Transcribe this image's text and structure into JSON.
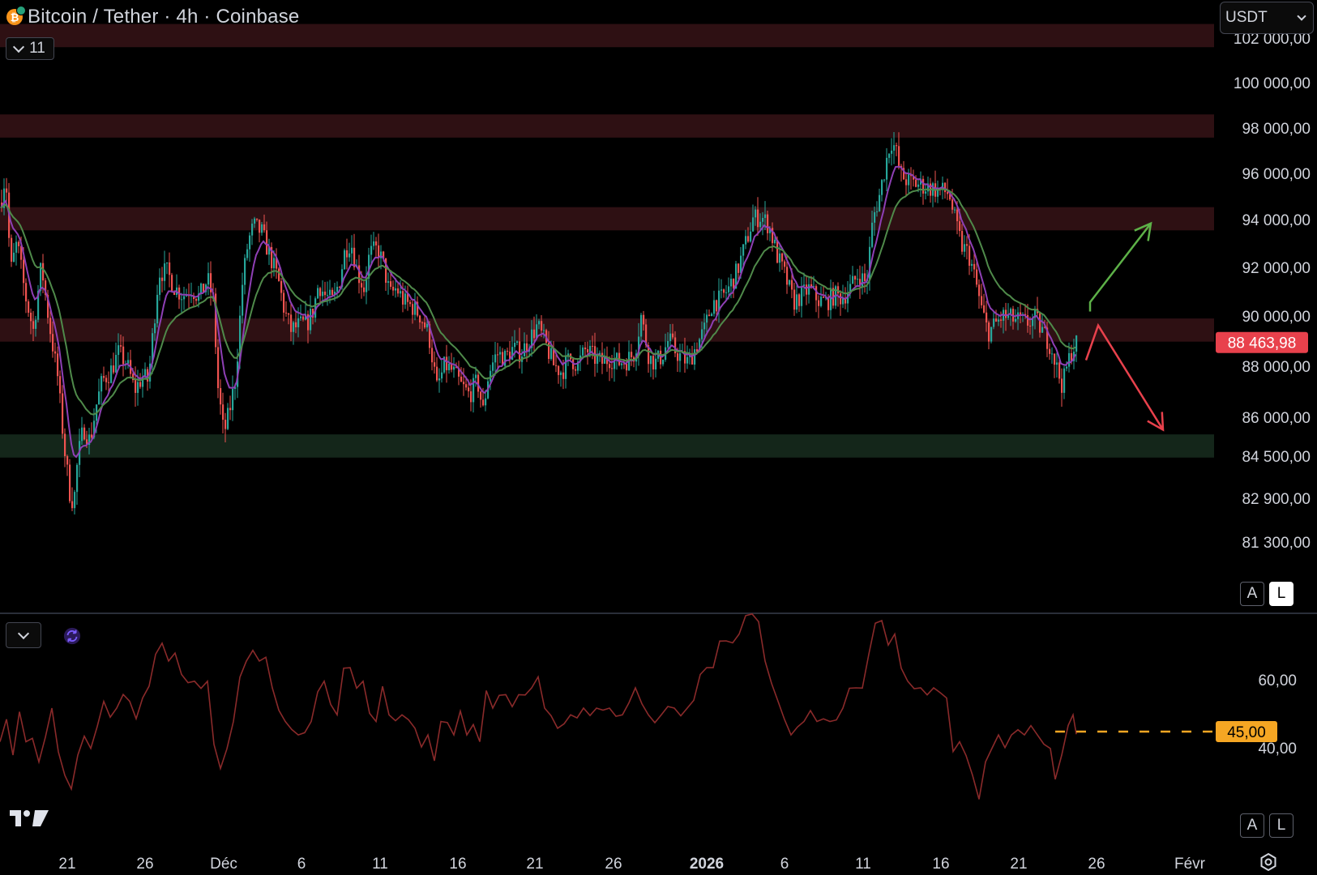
{
  "header": {
    "title": "Bitcoin / Tether · 4h · Coinbase",
    "indicator_count": "11",
    "currency": "USDT"
  },
  "colors": {
    "background": "#000000",
    "resistance_zone": "#2e1013",
    "support_zone": "#14261a",
    "candle_up": "#26a69a",
    "candle_down": "#ef5350",
    "ema_fast": "#8e3fb5",
    "ema_slow": "#4f8a4a",
    "rsi_line": "#8a2a2a",
    "price_label": "#e8414c",
    "rsi_label": "#f5a623",
    "arrow_up": "#5db148",
    "arrow_down": "#e8414c"
  },
  "price_axis": {
    "ticks": [
      "102 000,00",
      "100 000,00",
      "98 000,00",
      "96 000,00",
      "94 000,00",
      "92 000,00",
      "90 000,00",
      "88 000,00",
      "86 000,00",
      "84 500,00",
      "82 900,00",
      "81 300,00"
    ],
    "current_price": "88 463,98"
  },
  "rsi_axis": {
    "ticks": [
      "60,00",
      "40,00"
    ],
    "current_value": "45,00"
  },
  "time_axis": {
    "labels": [
      "21",
      "26",
      "Déc",
      "6",
      "11",
      "16",
      "21",
      "26",
      "2026",
      "6",
      "11",
      "16",
      "21",
      "26",
      "Févr"
    ]
  },
  "scale_buttons": {
    "auto": "A",
    "log": "L"
  },
  "zones": [
    {
      "type": "resistance",
      "low": 101200,
      "high": 102200
    },
    {
      "type": "resistance",
      "low": 97300,
      "high": 98300
    },
    {
      "type": "resistance",
      "low": 93300,
      "high": 94300
    },
    {
      "type": "resistance",
      "low": 88500,
      "high": 89500
    },
    {
      "type": "support",
      "low": 83500,
      "high": 84500
    }
  ],
  "chart_data": {
    "type": "candlestick",
    "symbol": "BTC/USDT",
    "interval": "4h",
    "exchange": "Coinbase",
    "y_range": [
      80400,
      102500
    ],
    "last_price": 88463.98,
    "price_path": [
      [
        0,
        94500
      ],
      [
        6,
        95800
      ],
      [
        12,
        91500
      ],
      [
        20,
        92800
      ],
      [
        30,
        90500
      ],
      [
        40,
        89000
      ],
      [
        50,
        91800
      ],
      [
        60,
        89200
      ],
      [
        70,
        87000
      ],
      [
        78,
        84000
      ],
      [
        85,
        82000
      ],
      [
        90,
        81500
      ],
      [
        95,
        83500
      ],
      [
        102,
        84800
      ],
      [
        110,
        84200
      ],
      [
        118,
        85800
      ],
      [
        125,
        86800
      ],
      [
        135,
        87200
      ],
      [
        145,
        88000
      ],
      [
        155,
        87600
      ],
      [
        165,
        86400
      ],
      [
        175,
        87000
      ],
      [
        182,
        86800
      ],
      [
        188,
        89000
      ],
      [
        195,
        91500
      ],
      [
        205,
        91500
      ],
      [
        215,
        90800
      ],
      [
        225,
        90500
      ],
      [
        235,
        90800
      ],
      [
        245,
        90400
      ],
      [
        255,
        91200
      ],
      [
        262,
        90300
      ],
      [
        268,
        86500
      ],
      [
        275,
        84500
      ],
      [
        282,
        85500
      ],
      [
        290,
        87000
      ],
      [
        298,
        91000
      ],
      [
        305,
        92800
      ],
      [
        312,
        93500
      ],
      [
        322,
        93200
      ],
      [
        332,
        92200
      ],
      [
        342,
        91200
      ],
      [
        350,
        89800
      ],
      [
        358,
        89000
      ],
      [
        368,
        89200
      ],
      [
        378,
        89300
      ],
      [
        385,
        89800
      ],
      [
        392,
        91000
      ],
      [
        400,
        90500
      ],
      [
        410,
        90200
      ],
      [
        418,
        91200
      ],
      [
        425,
        92500
      ],
      [
        432,
        92800
      ],
      [
        440,
        91500
      ],
      [
        448,
        90800
      ],
      [
        455,
        92300
      ],
      [
        465,
        92500
      ],
      [
        472,
        91800
      ],
      [
        480,
        90500
      ],
      [
        488,
        90800
      ],
      [
        498,
        90200
      ],
      [
        508,
        90000
      ],
      [
        518,
        89600
      ],
      [
        528,
        88800
      ],
      [
        538,
        86500
      ],
      [
        548,
        87500
      ],
      [
        558,
        87200
      ],
      [
        568,
        86600
      ],
      [
        578,
        86200
      ],
      [
        588,
        86800
      ],
      [
        595,
        85500
      ],
      [
        602,
        87200
      ],
      [
        612,
        88000
      ],
      [
        622,
        87800
      ],
      [
        632,
        88200
      ],
      [
        642,
        88000
      ],
      [
        652,
        88600
      ],
      [
        662,
        89200
      ],
      [
        672,
        88400
      ],
      [
        682,
        87500
      ],
      [
        692,
        87200
      ],
      [
        702,
        87800
      ],
      [
        712,
        87500
      ],
      [
        722,
        88200
      ],
      [
        732,
        87800
      ],
      [
        742,
        87600
      ],
      [
        752,
        87800
      ],
      [
        762,
        87600
      ],
      [
        772,
        87700
      ],
      [
        782,
        88000
      ],
      [
        790,
        89600
      ],
      [
        800,
        87800
      ],
      [
        808,
        87600
      ],
      [
        816,
        87900
      ],
      [
        824,
        88600
      ],
      [
        832,
        88100
      ],
      [
        840,
        87800
      ],
      [
        848,
        87600
      ],
      [
        858,
        88300
      ],
      [
        868,
        89000
      ],
      [
        878,
        90200
      ],
      [
        888,
        90300
      ],
      [
        898,
        90800
      ],
      [
        908,
        91500
      ],
      [
        918,
        92600
      ],
      [
        928,
        93800
      ],
      [
        938,
        93900
      ],
      [
        948,
        93500
      ],
      [
        958,
        92200
      ],
      [
        968,
        91300
      ],
      [
        978,
        90200
      ],
      [
        988,
        90500
      ],
      [
        998,
        90800
      ],
      [
        1008,
        90300
      ],
      [
        1018,
        90200
      ],
      [
        1028,
        90500
      ],
      [
        1038,
        90400
      ],
      [
        1048,
        90800
      ],
      [
        1058,
        91400
      ],
      [
        1068,
        91000
      ],
      [
        1076,
        93800
      ],
      [
        1084,
        94800
      ],
      [
        1092,
        96200
      ],
      [
        1098,
        97200
      ],
      [
        1104,
        96800
      ],
      [
        1110,
        95700
      ],
      [
        1120,
        95400
      ],
      [
        1130,
        95300
      ],
      [
        1140,
        95200
      ],
      [
        1150,
        95100
      ],
      [
        1160,
        95000
      ],
      [
        1170,
        94900
      ],
      [
        1178,
        93600
      ],
      [
        1186,
        92600
      ],
      [
        1194,
        92300
      ],
      [
        1202,
        91200
      ],
      [
        1210,
        89900
      ],
      [
        1218,
        88900
      ],
      [
        1226,
        89200
      ],
      [
        1236,
        89600
      ],
      [
        1246,
        89500
      ],
      [
        1256,
        89400
      ],
      [
        1266,
        89300
      ],
      [
        1276,
        89500
      ],
      [
        1286,
        88900
      ],
      [
        1296,
        88300
      ],
      [
        1304,
        87200
      ],
      [
        1310,
        86600
      ],
      [
        1316,
        87500
      ],
      [
        1322,
        88200
      ],
      [
        1328,
        88464
      ]
    ],
    "annotations": [
      {
        "type": "arrow",
        "direction": "up",
        "from": [
          1345,
          89800
        ],
        "via": [
          1345,
          90200
        ],
        "to": [
          1420,
          93600
        ]
      },
      {
        "type": "arrow",
        "direction": "down",
        "from": [
          1340,
          87700
        ],
        "via": [
          1355,
          89200
        ],
        "to": [
          1435,
          84700
        ]
      }
    ],
    "rsi": {
      "levels": {
        "reference": 45
      },
      "y_range": [
        22,
        85
      ],
      "path": [
        [
          0,
          42
        ],
        [
          8,
          48
        ],
        [
          16,
          38
        ],
        [
          24,
          50
        ],
        [
          32,
          42
        ],
        [
          40,
          45
        ],
        [
          48,
          36
        ],
        [
          56,
          44
        ],
        [
          64,
          52
        ],
        [
          72,
          38
        ],
        [
          80,
          32
        ],
        [
          88,
          28
        ],
        [
          96,
          38
        ],
        [
          104,
          42
        ],
        [
          112,
          40
        ],
        [
          120,
          48
        ],
        [
          128,
          54
        ],
        [
          136,
          50
        ],
        [
          144,
          52
        ],
        [
          152,
          58
        ],
        [
          160,
          54
        ],
        [
          168,
          50
        ],
        [
          176,
          55
        ],
        [
          184,
          58
        ],
        [
          192,
          68
        ],
        [
          200,
          70
        ],
        [
          208,
          66
        ],
        [
          216,
          70
        ],
        [
          224,
          62
        ],
        [
          232,
          58
        ],
        [
          240,
          60
        ],
        [
          248,
          58
        ],
        [
          256,
          60
        ],
        [
          264,
          42
        ],
        [
          272,
          34
        ],
        [
          280,
          40
        ],
        [
          288,
          48
        ],
        [
          296,
          62
        ],
        [
          304,
          66
        ],
        [
          312,
          68
        ],
        [
          320,
          66
        ],
        [
          328,
          68
        ],
        [
          336,
          58
        ],
        [
          344,
          52
        ],
        [
          352,
          48
        ],
        [
          360,
          46
        ],
        [
          368,
          44
        ],
        [
          376,
          46
        ],
        [
          384,
          48
        ],
        [
          392,
          58
        ],
        [
          400,
          60
        ],
        [
          408,
          54
        ],
        [
          416,
          50
        ],
        [
          424,
          62
        ],
        [
          432,
          64
        ],
        [
          440,
          56
        ],
        [
          448,
          60
        ],
        [
          456,
          52
        ],
        [
          464,
          48
        ],
        [
          472,
          58
        ],
        [
          480,
          50
        ],
        [
          488,
          48
        ],
        [
          496,
          50
        ],
        [
          504,
          48
        ],
        [
          512,
          46
        ],
        [
          520,
          40
        ],
        [
          528,
          44
        ],
        [
          536,
          38
        ],
        [
          544,
          48
        ],
        [
          552,
          46
        ],
        [
          560,
          44
        ],
        [
          568,
          50
        ],
        [
          576,
          44
        ],
        [
          584,
          48
        ],
        [
          592,
          42
        ],
        [
          600,
          56
        ],
        [
          608,
          52
        ],
        [
          616,
          54
        ],
        [
          624,
          56
        ],
        [
          632,
          54
        ],
        [
          640,
          56
        ],
        [
          648,
          55
        ],
        [
          656,
          58
        ],
        [
          664,
          60
        ],
        [
          672,
          52
        ],
        [
          680,
          50
        ],
        [
          688,
          46
        ],
        [
          696,
          48
        ],
        [
          704,
          50
        ],
        [
          712,
          48
        ],
        [
          720,
          52
        ],
        [
          728,
          48
        ],
        [
          736,
          52
        ],
        [
          744,
          50
        ],
        [
          752,
          52
        ],
        [
          760,
          48
        ],
        [
          768,
          50
        ],
        [
          776,
          52
        ],
        [
          784,
          58
        ],
        [
          792,
          54
        ],
        [
          800,
          50
        ],
        [
          808,
          48
        ],
        [
          816,
          50
        ],
        [
          824,
          54
        ],
        [
          832,
          52
        ],
        [
          840,
          50
        ],
        [
          848,
          52
        ],
        [
          856,
          56
        ],
        [
          864,
          62
        ],
        [
          872,
          66
        ],
        [
          880,
          64
        ],
        [
          888,
          70
        ],
        [
          896,
          72
        ],
        [
          904,
          70
        ],
        [
          912,
          74
        ],
        [
          920,
          78
        ],
        [
          928,
          80
        ],
        [
          936,
          76
        ],
        [
          944,
          66
        ],
        [
          952,
          60
        ],
        [
          960,
          54
        ],
        [
          968,
          48
        ],
        [
          976,
          44
        ],
        [
          984,
          46
        ],
        [
          992,
          48
        ],
        [
          1000,
          50
        ],
        [
          1008,
          48
        ],
        [
          1016,
          50
        ],
        [
          1024,
          48
        ],
        [
          1032,
          50
        ],
        [
          1040,
          52
        ],
        [
          1048,
          56
        ],
        [
          1056,
          58
        ],
        [
          1064,
          56
        ],
        [
          1072,
          68
        ],
        [
          1080,
          76
        ],
        [
          1088,
          78
        ],
        [
          1096,
          72
        ],
        [
          1104,
          74
        ],
        [
          1112,
          62
        ],
        [
          1120,
          60
        ],
        [
          1128,
          58
        ],
        [
          1136,
          58
        ],
        [
          1144,
          56
        ],
        [
          1152,
          58
        ],
        [
          1160,
          56
        ],
        [
          1168,
          55
        ],
        [
          1176,
          40
        ],
        [
          1184,
          42
        ],
        [
          1192,
          36
        ],
        [
          1200,
          32
        ],
        [
          1208,
          26
        ],
        [
          1216,
          36
        ],
        [
          1224,
          42
        ],
        [
          1232,
          44
        ],
        [
          1240,
          42
        ],
        [
          1248,
          44
        ],
        [
          1256,
          46
        ],
        [
          1264,
          44
        ],
        [
          1272,
          46
        ],
        [
          1280,
          44
        ],
        [
          1288,
          42
        ],
        [
          1296,
          40
        ],
        [
          1302,
          30
        ],
        [
          1310,
          38
        ],
        [
          1318,
          46
        ],
        [
          1324,
          50
        ],
        [
          1328,
          46
        ]
      ]
    },
    "x_labels": [
      "21",
      "26",
      "Déc",
      "6",
      "11",
      "16",
      "21",
      "26",
      "2026",
      "6",
      "11",
      "16",
      "21",
      "26",
      "Févr"
    ]
  }
}
